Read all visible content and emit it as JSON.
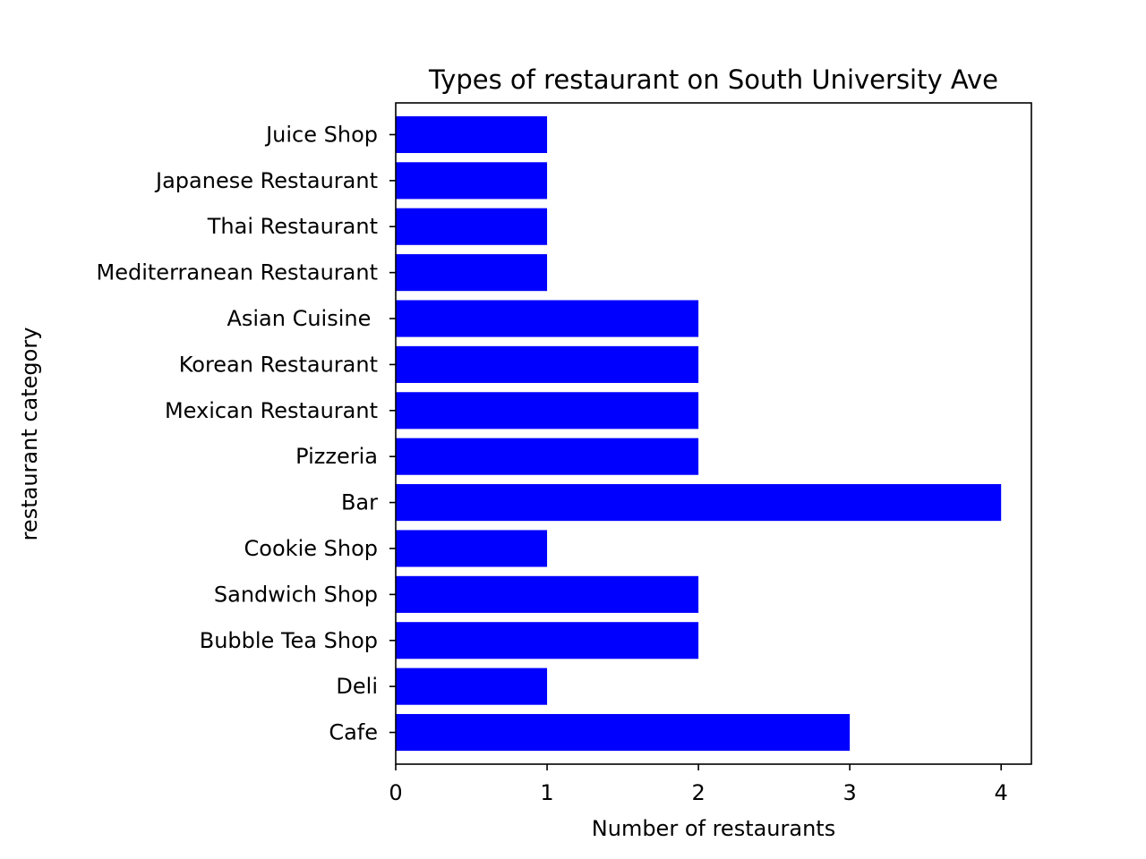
{
  "chart_data": {
    "type": "bar",
    "orientation": "horizontal",
    "title": "Types of restaurant on South University Ave",
    "xlabel": "Number of restaurants",
    "ylabel": "restaurant category",
    "categories": [
      "Cafe",
      "Deli",
      "Bubble Tea Shop",
      "Sandwich Shop",
      "Cookie Shop",
      "Bar",
      "Pizzeria",
      "Mexican Restaurant",
      "Korean Restaurant",
      "Asian Cuisine ",
      "Mediterranean Restaurant",
      "Thai Restaurant",
      "Japanese Restaurant",
      "Juice Shop"
    ],
    "values": [
      3,
      1,
      2,
      2,
      1,
      4,
      2,
      2,
      2,
      2,
      1,
      1,
      1,
      1
    ],
    "xlim": [
      0,
      4.2
    ],
    "xticks": [
      "0",
      "1",
      "2",
      "3",
      "4"
    ],
    "bar_color": "#0000ff",
    "grid": false,
    "legend": "none"
  }
}
